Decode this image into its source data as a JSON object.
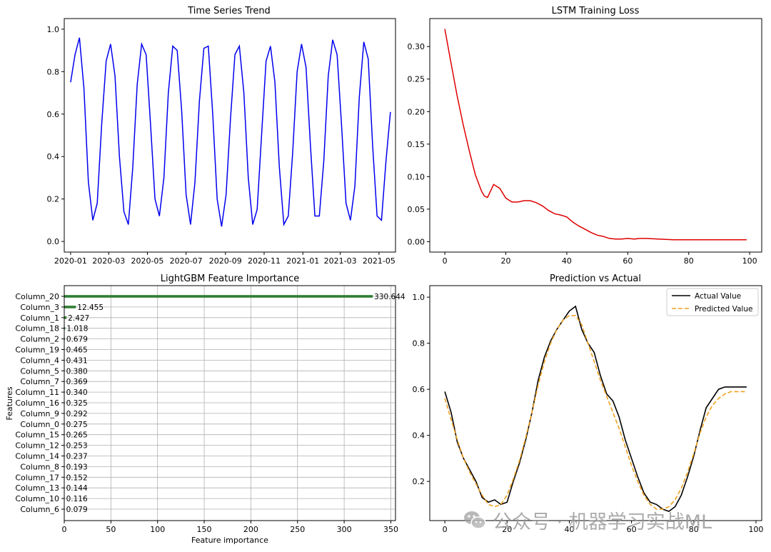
{
  "chart_data": [
    {
      "type": "line",
      "title": "Time Series Trend",
      "xlabel": "",
      "ylabel": "",
      "x_ticks": [
        "2020-01",
        "2020-03",
        "2020-05",
        "2020-07",
        "2020-09",
        "2020-11",
        "2021-01",
        "2021-03",
        "2021-05"
      ],
      "x_range": [
        "2019-12-22",
        "2021-05-27"
      ],
      "ylim": [
        -0.05,
        1.05
      ],
      "y_ticks": [
        "0.0",
        "0.2",
        "0.4",
        "0.6",
        "0.8",
        "1.0"
      ],
      "grid": false,
      "color": "#0000ee",
      "series": [
        {
          "x": [
            "2020-01-01",
            "2020-01-08",
            "2020-01-15",
            "2020-01-22",
            "2020-01-29",
            "2020-02-05",
            "2020-02-12",
            "2020-02-19",
            "2020-02-26",
            "2020-03-04",
            "2020-03-11",
            "2020-03-18",
            "2020-03-25",
            "2020-04-01",
            "2020-04-08",
            "2020-04-15",
            "2020-04-22",
            "2020-04-29",
            "2020-05-06",
            "2020-05-13",
            "2020-05-20",
            "2020-05-27",
            "2020-06-03",
            "2020-06-10",
            "2020-06-17",
            "2020-06-24",
            "2020-07-01",
            "2020-07-08",
            "2020-07-15",
            "2020-07-22",
            "2020-07-29",
            "2020-08-05",
            "2020-08-12",
            "2020-08-19",
            "2020-08-26",
            "2020-09-02",
            "2020-09-09",
            "2020-09-16",
            "2020-09-23",
            "2020-09-30",
            "2020-10-07",
            "2020-10-14",
            "2020-10-21",
            "2020-10-28",
            "2020-11-04",
            "2020-11-11",
            "2020-11-18",
            "2020-11-25",
            "2020-12-02",
            "2020-12-09",
            "2020-12-16",
            "2020-12-23",
            "2020-12-30",
            "2021-01-06",
            "2021-01-13",
            "2021-01-20",
            "2021-01-27",
            "2021-02-03",
            "2021-02-10",
            "2021-02-17",
            "2021-02-24",
            "2021-03-03",
            "2021-03-10",
            "2021-03-17",
            "2021-03-24",
            "2021-03-31",
            "2021-04-07",
            "2021-04-14",
            "2021-04-21",
            "2021-04-28",
            "2021-05-05",
            "2021-05-12",
            "2021-05-19"
          ],
          "y": [
            0.75,
            0.88,
            0.96,
            0.72,
            0.28,
            0.1,
            0.18,
            0.55,
            0.85,
            0.93,
            0.78,
            0.4,
            0.14,
            0.08,
            0.35,
            0.74,
            0.93,
            0.88,
            0.55,
            0.2,
            0.12,
            0.3,
            0.7,
            0.92,
            0.9,
            0.62,
            0.22,
            0.08,
            0.28,
            0.66,
            0.91,
            0.92,
            0.6,
            0.2,
            0.07,
            0.22,
            0.58,
            0.88,
            0.92,
            0.7,
            0.3,
            0.08,
            0.15,
            0.5,
            0.85,
            0.92,
            0.75,
            0.35,
            0.08,
            0.12,
            0.42,
            0.8,
            0.93,
            0.82,
            0.45,
            0.12,
            0.12,
            0.38,
            0.78,
            0.95,
            0.88,
            0.55,
            0.18,
            0.1,
            0.26,
            0.68,
            0.94,
            0.86,
            0.45,
            0.12,
            0.1,
            0.38,
            0.61
          ]
        }
      ]
    },
    {
      "type": "line",
      "title": "LSTM Training Loss",
      "xlabel": "",
      "ylabel": "",
      "xlim": [
        -4.95,
        103.95
      ],
      "ylim": [
        -0.016,
        0.343
      ],
      "x_ticks": [
        0,
        20,
        40,
        60,
        80,
        100
      ],
      "y_ticks": [
        "0.00",
        "0.05",
        "0.10",
        "0.15",
        "0.20",
        "0.25",
        "0.30"
      ],
      "grid": false,
      "color": "#dd0000",
      "series": [
        {
          "x": [
            0,
            2,
            4,
            6,
            8,
            10,
            12,
            13,
            14,
            16,
            18,
            20,
            22,
            24,
            26,
            28,
            30,
            32,
            34,
            36,
            38,
            40,
            42,
            44,
            46,
            48,
            50,
            52,
            54,
            56,
            58,
            60,
            62,
            64,
            66,
            70,
            75,
            80,
            90,
            99
          ],
          "y": [
            0.327,
            0.275,
            0.225,
            0.18,
            0.14,
            0.103,
            0.078,
            0.07,
            0.068,
            0.088,
            0.082,
            0.067,
            0.061,
            0.061,
            0.063,
            0.063,
            0.06,
            0.055,
            0.048,
            0.043,
            0.041,
            0.038,
            0.03,
            0.024,
            0.019,
            0.014,
            0.01,
            0.008,
            0.005,
            0.004,
            0.004,
            0.005,
            0.004,
            0.005,
            0.005,
            0.004,
            0.003,
            0.003,
            0.003,
            0.003
          ]
        }
      ]
    },
    {
      "type": "bar",
      "orientation": "horizontal",
      "title": "LightGBM Feature Importance",
      "xlabel": "Feature importance",
      "ylabel": "Features",
      "xlim": [
        0,
        355
      ],
      "x_ticks": [
        0,
        50,
        100,
        150,
        200,
        250,
        300,
        350
      ],
      "grid": true,
      "color": "#2e7d32",
      "categories": [
        "Column_20",
        "Column_3",
        "Column_1",
        "Column_18",
        "Column_2",
        "Column_19",
        "Column_4",
        "Column_5",
        "Column_7",
        "Column_11",
        "Column_16",
        "Column_9",
        "Column_0",
        "Column_15",
        "Column_12",
        "Column_14",
        "Column_8",
        "Column_17",
        "Column_13",
        "Column_10",
        "Column_6"
      ],
      "values": [
        330.644,
        12.455,
        2.427,
        1.018,
        0.679,
        0.465,
        0.431,
        0.38,
        0.369,
        0.34,
        0.325,
        0.292,
        0.275,
        0.265,
        0.253,
        0.237,
        0.193,
        0.152,
        0.144,
        0.116,
        0.079
      ],
      "labels": [
        "330.644",
        "12.455",
        "2.427",
        "1.018",
        "0.679",
        "0.465",
        "0.431",
        "0.380",
        "0.369",
        "0.340",
        "0.325",
        "0.292",
        "0.275",
        "0.265",
        "0.253",
        "0.237",
        "0.193",
        "0.152",
        "0.144",
        "0.116",
        "0.079"
      ]
    },
    {
      "type": "line",
      "title": "Prediction vs Actual",
      "xlabel": "",
      "ylabel": "",
      "xlim": [
        -4.85,
        101.85
      ],
      "ylim": [
        0.03,
        1.05
      ],
      "x_ticks": [
        0,
        20,
        40,
        60,
        80,
        100
      ],
      "y_ticks": [
        "0.2",
        "0.4",
        "0.6",
        "0.8",
        "1.0"
      ],
      "grid": false,
      "legend": "top-right",
      "series": [
        {
          "name": "Actual Value",
          "color": "#000000",
          "style": "solid",
          "x": [
            0,
            2,
            4,
            6,
            8,
            10,
            12,
            14,
            16,
            18,
            20,
            22,
            24,
            26,
            28,
            30,
            32,
            34,
            36,
            38,
            40,
            42,
            44,
            46,
            48,
            50,
            52,
            54,
            56,
            58,
            60,
            62,
            64,
            66,
            68,
            70,
            72,
            74,
            76,
            78,
            80,
            82,
            84,
            86,
            88,
            90,
            92,
            94,
            96,
            97
          ],
          "y": [
            0.59,
            0.5,
            0.37,
            0.3,
            0.25,
            0.2,
            0.13,
            0.11,
            0.12,
            0.1,
            0.11,
            0.2,
            0.28,
            0.38,
            0.5,
            0.64,
            0.74,
            0.81,
            0.86,
            0.9,
            0.94,
            0.96,
            0.86,
            0.8,
            0.76,
            0.66,
            0.58,
            0.55,
            0.48,
            0.38,
            0.3,
            0.22,
            0.15,
            0.11,
            0.1,
            0.08,
            0.07,
            0.09,
            0.14,
            0.22,
            0.31,
            0.42,
            0.52,
            0.56,
            0.6,
            0.61,
            0.61,
            0.61,
            0.61,
            0.61
          ]
        },
        {
          "name": "Predicted Value",
          "color": "#f0a020",
          "style": "dashed",
          "x": [
            0,
            2,
            4,
            6,
            8,
            10,
            12,
            14,
            16,
            18,
            20,
            22,
            24,
            26,
            28,
            30,
            32,
            34,
            36,
            38,
            40,
            42,
            44,
            46,
            48,
            50,
            52,
            54,
            56,
            58,
            60,
            62,
            64,
            66,
            68,
            70,
            72,
            74,
            76,
            78,
            80,
            82,
            84,
            86,
            88,
            90,
            92,
            94,
            96,
            97
          ],
          "y": [
            0.56,
            0.47,
            0.38,
            0.3,
            0.24,
            0.19,
            0.14,
            0.1,
            0.09,
            0.1,
            0.14,
            0.21,
            0.29,
            0.39,
            0.5,
            0.62,
            0.72,
            0.8,
            0.86,
            0.9,
            0.92,
            0.92,
            0.88,
            0.8,
            0.72,
            0.64,
            0.57,
            0.5,
            0.43,
            0.35,
            0.27,
            0.2,
            0.14,
            0.1,
            0.08,
            0.08,
            0.09,
            0.12,
            0.17,
            0.24,
            0.32,
            0.41,
            0.48,
            0.53,
            0.56,
            0.58,
            0.59,
            0.59,
            0.59,
            0.59
          ]
        }
      ]
    }
  ],
  "watermark": {
    "text": "公众号 · 机器学习实战ML",
    "icon": "wechat-icon"
  }
}
